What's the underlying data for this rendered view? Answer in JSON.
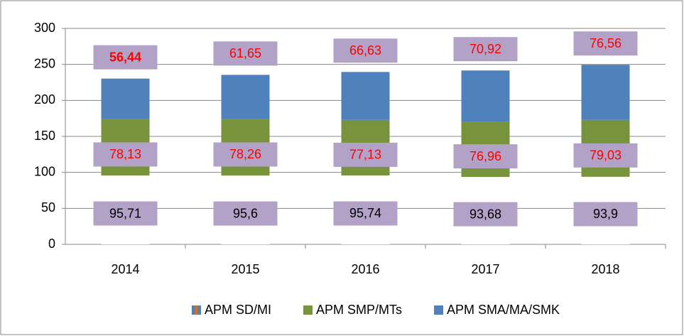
{
  "chart_data": {
    "type": "stacked_bar",
    "categories": [
      "2014",
      "2015",
      "2016",
      "2017",
      "2018"
    ],
    "series": [
      {
        "name": "APM SD/MI",
        "color": "#ffffff",
        "values": [
          95.71,
          95.6,
          95.74,
          93.68,
          93.9
        ],
        "value_labels": [
          "95,71",
          "95,6",
          "95,74",
          "93,68",
          "93,9"
        ]
      },
      {
        "name": "APM SMP/MTs",
        "color": "#77933c",
        "values": [
          78.13,
          78.26,
          77.13,
          76.96,
          79.03
        ],
        "value_labels": [
          "78,13",
          "78,26",
          "77,13",
          "76,96",
          "79,03"
        ]
      },
      {
        "name": "APM SMA/MA/SMK",
        "color": "#4f81bd",
        "values": [
          56.44,
          61.65,
          66.63,
          70.92,
          76.56
        ],
        "value_labels": [
          "56,44",
          "61,65",
          "66,63",
          "70,92",
          "76,56"
        ]
      }
    ],
    "ylim": [
      0,
      300
    ],
    "yticks": [
      0,
      50,
      100,
      150,
      200,
      250,
      300
    ],
    "grid": true,
    "legend": "bottom"
  }
}
